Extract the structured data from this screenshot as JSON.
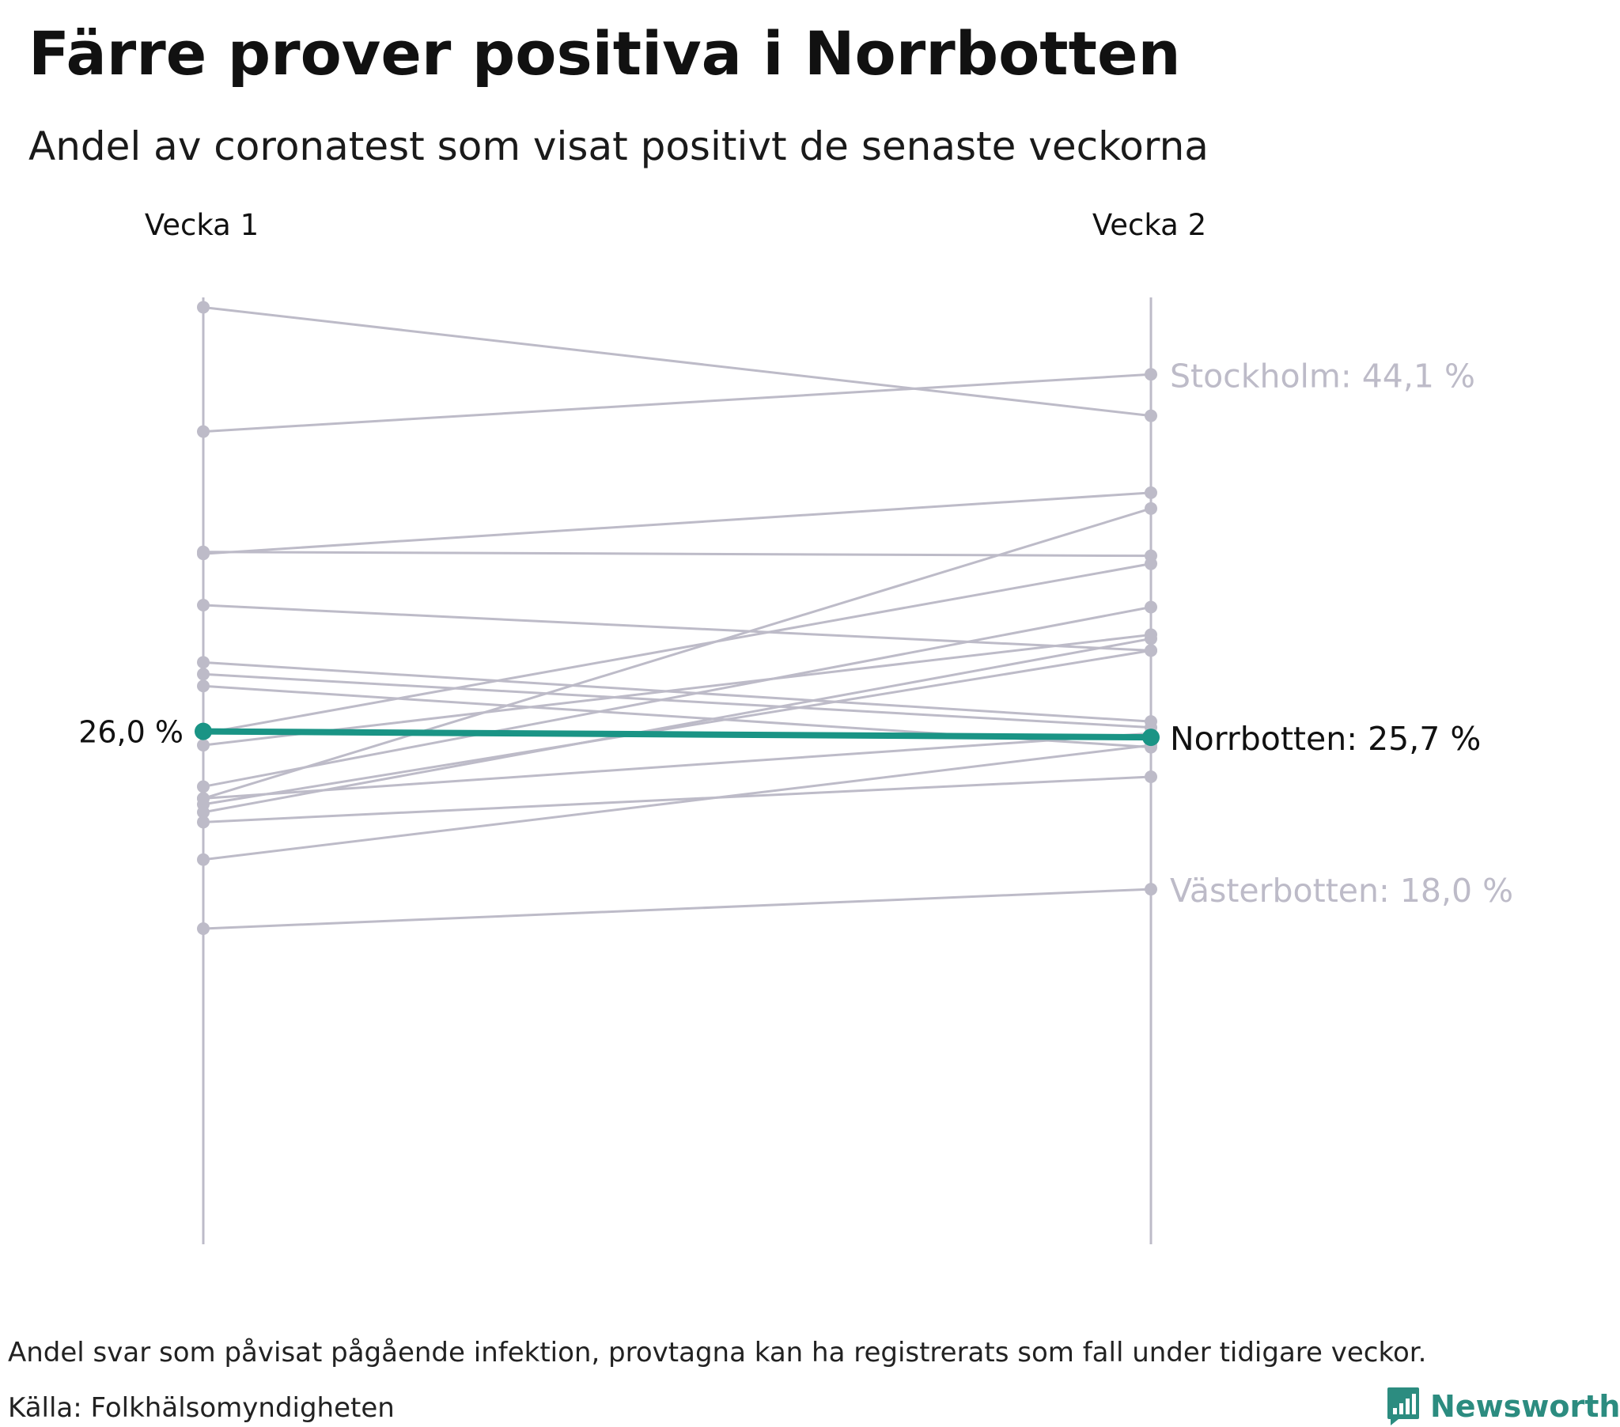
{
  "title": "Färre prover positiva i Norrbotten",
  "subtitle": "Andel av coronatest som visat positivt de senaste veckorna",
  "footnote": "Andel svar som påvisat pågående infektion, provtagna kan ha registrerats som fall under tidigare veckor.",
  "source": "Källa: Folkhälsomyndigheten",
  "brand": "Newsworthy",
  "colors": {
    "context": "#bdbbc8",
    "highlight": "#1a9485",
    "brand": "#2c8c80"
  },
  "chart_data": {
    "type": "slope",
    "categories": [
      "Vecka 1",
      "Vecka 2"
    ],
    "ylim": [
      0,
      48
    ],
    "series": [
      {
        "values": [
          47.5,
          42.0
        ]
      },
      {
        "values": [
          41.2,
          44.1
        ],
        "label": "Stockholm: 44,1 %"
      },
      {
        "values": [
          35.0,
          38.1
        ]
      },
      {
        "values": [
          35.1,
          34.9
        ]
      },
      {
        "values": [
          32.4,
          30.1
        ]
      },
      {
        "values": [
          29.5,
          26.5
        ]
      },
      {
        "values": [
          28.9,
          26.2
        ]
      },
      {
        "values": [
          28.3,
          25.2
        ]
      },
      {
        "values": [
          25.3,
          30.9
        ]
      },
      {
        "values": [
          25.9,
          34.5
        ]
      },
      {
        "values": [
          23.2,
          32.3
        ]
      },
      {
        "values": [
          22.6,
          37.3
        ]
      },
      {
        "values": [
          22.3,
          30.1
        ]
      },
      {
        "values": [
          21.9,
          30.7
        ]
      },
      {
        "values": [
          22.6,
          25.9
        ]
      },
      {
        "values": [
          21.4,
          23.7
        ]
      },
      {
        "values": [
          19.5,
          25.3
        ]
      },
      {
        "values": [
          16.0,
          18.0
        ],
        "label": "Västerbotten: 18,0 %"
      },
      {
        "values": [
          26.0,
          25.7
        ],
        "label": "Norrbotten: 25,7 %",
        "start_label": "26,0 %",
        "highlight": true
      }
    ]
  }
}
